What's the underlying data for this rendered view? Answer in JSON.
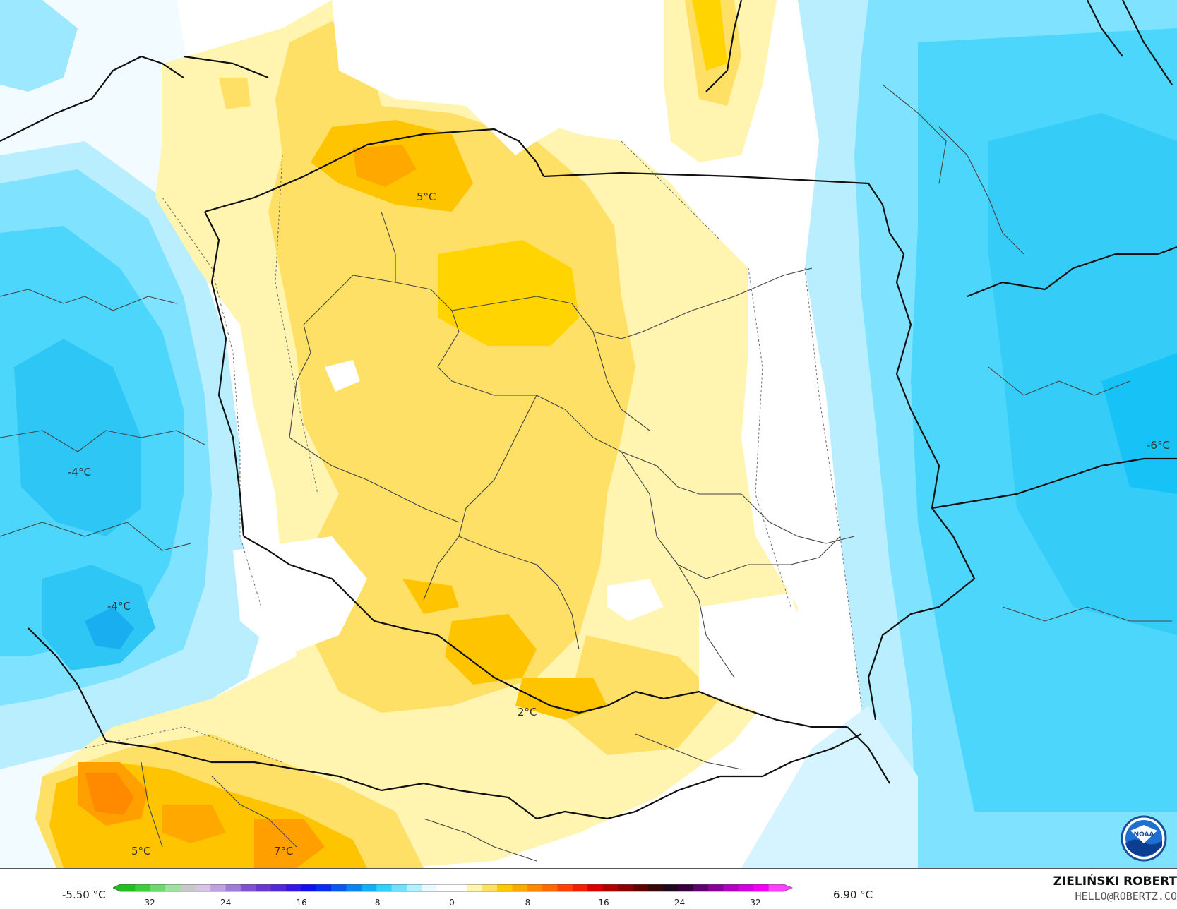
{
  "legend": {
    "min_label": "-5.50 °C",
    "max_label": "6.90 °C",
    "ticks": [
      "-32",
      "-24",
      "-16",
      "-8",
      "0",
      "8",
      "16",
      "24",
      "32"
    ],
    "colors": [
      "#1fbf1f",
      "#3ccf3c",
      "#6ed86e",
      "#9ee09e",
      "#c8c8c8",
      "#d6c4e6",
      "#bfa0e0",
      "#a07ad8",
      "#8050d0",
      "#6a38d0",
      "#5028d8",
      "#3418e0",
      "#1010f0",
      "#0a2cf0",
      "#0a58f0",
      "#0a84f0",
      "#10b0f8",
      "#30d0ff",
      "#70e0ff",
      "#b0f0ff",
      "#e8faff",
      "#ffffff",
      "#ffffff",
      "#fff4b0",
      "#ffe060",
      "#ffc800",
      "#ffa800",
      "#ff8800",
      "#ff6800",
      "#ff4000",
      "#f02000",
      "#d80000",
      "#b00000",
      "#880000",
      "#600000",
      "#380808",
      "#200820",
      "#380040",
      "#600070",
      "#880098",
      "#b000c0",
      "#d000e0",
      "#f000f8",
      "#ff40ff"
    ]
  },
  "map_labels": {
    "t1": "5°C",
    "t2": "-4°C",
    "t3": "-4°C",
    "t4": "-6°C",
    "t5": "2°C",
    "t6": "5°C",
    "t7": "7°C"
  },
  "author": {
    "name": "ZIELIŃSKI ROBERT",
    "email": "HELLO@ROBERTZ.CO"
  },
  "logo": {
    "text": "NOAA",
    "icon": "noaa-logo-icon"
  }
}
